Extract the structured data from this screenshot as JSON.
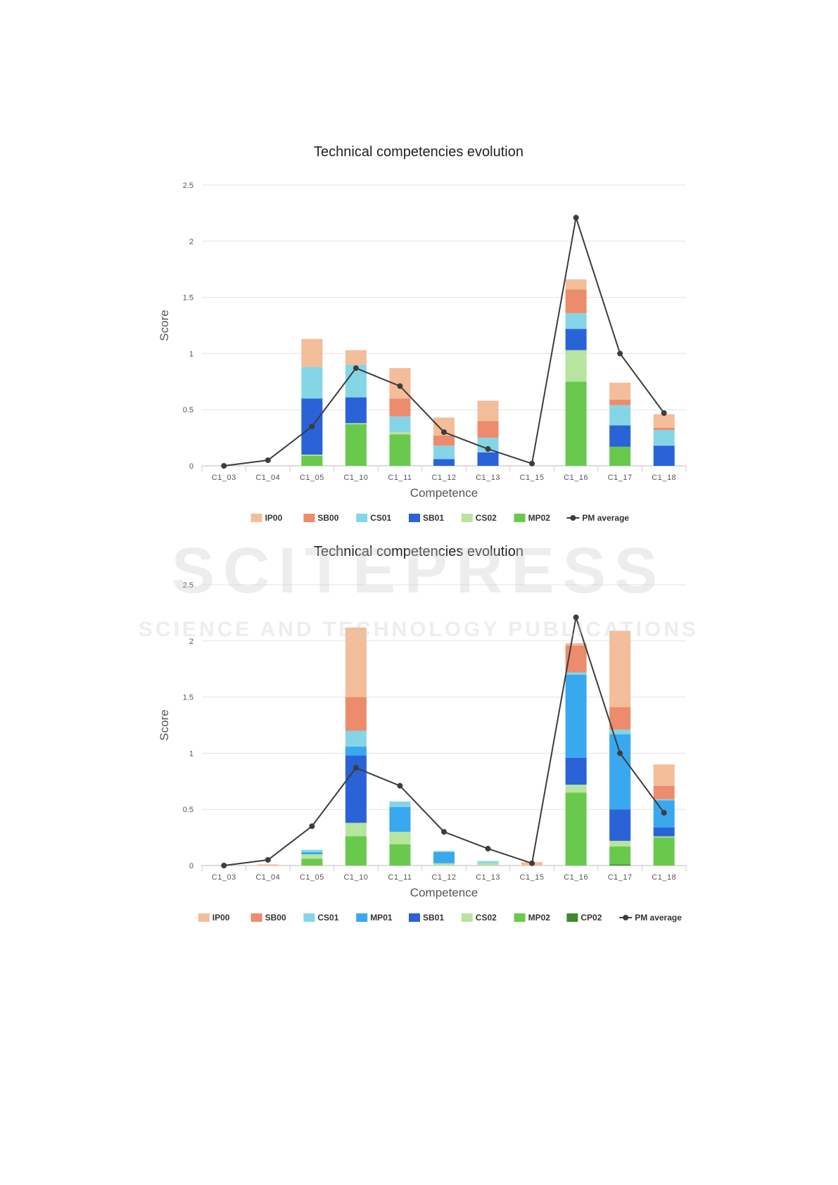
{
  "watermark": {
    "line1": "SCITEPRESS",
    "line2": "SCIENCE AND TECHNOLOGY PUBLICATIONS"
  },
  "series_colors": {
    "IP00": "#f4bd9a",
    "SB00": "#ec8c6c",
    "CS01": "#84d6e6",
    "MP01": "#39a8ef",
    "SB01": "#2a62d8",
    "CS02": "#b7e49e",
    "MP02": "#68c94c",
    "CP02": "#3d8b2c",
    "PM average": "#3d3d3d"
  },
  "chart_data": [
    {
      "type": "bar",
      "stacked": true,
      "title": "Technical competencies evolution",
      "xlabel": "Competence",
      "ylabel": "Score",
      "ylim": [
        0,
        2.5
      ],
      "yticks": [
        "0",
        "0.5",
        "1",
        "1.5",
        "2",
        "2.5"
      ],
      "grid": true,
      "legend_position": "bottom",
      "categories": [
        "C1_03",
        "C1_04",
        "C1_05",
        "C1_10",
        "C1_11",
        "C1_12",
        "C1_13",
        "C1_15",
        "C1_16",
        "C1_17",
        "C1_18"
      ],
      "series": [
        {
          "name": "MP02",
          "values": [
            0,
            0,
            0.09,
            0.37,
            0.28,
            0,
            0,
            0,
            0.75,
            0.17,
            0
          ]
        },
        {
          "name": "CS02",
          "values": [
            0,
            0,
            0.01,
            0.01,
            0.02,
            0,
            0,
            0,
            0.28,
            0,
            0
          ]
        },
        {
          "name": "SB01",
          "values": [
            0,
            0,
            0.5,
            0.23,
            0,
            0.06,
            0.12,
            0,
            0.19,
            0.19,
            0.18
          ]
        },
        {
          "name": "CS01",
          "values": [
            0,
            0,
            0.28,
            0.29,
            0.14,
            0.12,
            0.13,
            0,
            0.14,
            0.18,
            0.14
          ]
        },
        {
          "name": "SB00",
          "values": [
            0,
            0,
            0,
            0,
            0.16,
            0.09,
            0.15,
            0,
            0.21,
            0.05,
            0.02
          ]
        },
        {
          "name": "IP00",
          "values": [
            0,
            0,
            0.25,
            0.13,
            0.27,
            0.16,
            0.18,
            0,
            0.09,
            0.15,
            0.12
          ]
        }
      ],
      "line": {
        "name": "PM average",
        "values": [
          0,
          0.05,
          0.35,
          0.87,
          0.71,
          0.3,
          0.15,
          0.02,
          2.21,
          1.0,
          0.47
        ]
      },
      "legend": [
        "IP00",
        "SB00",
        "CS01",
        "SB01",
        "CS02",
        "MP02",
        "PM average"
      ]
    },
    {
      "type": "bar",
      "stacked": true,
      "title": "Technical competencies evolution",
      "xlabel": "Competence",
      "ylabel": "Score",
      "ylim": [
        0,
        2.5
      ],
      "yticks": [
        "0",
        "0.5",
        "1",
        "1.5",
        "2",
        "2.5"
      ],
      "grid": true,
      "legend_position": "bottom",
      "categories": [
        "C1_03",
        "C1_04",
        "C1_05",
        "C1_10",
        "C1_11",
        "C1_12",
        "C1_13",
        "C1_15",
        "C1_16",
        "C1_17",
        "C1_18"
      ],
      "series": [
        {
          "name": "CP02",
          "values": [
            0,
            0,
            0,
            0,
            0,
            0,
            0,
            0,
            0,
            0.01,
            0
          ]
        },
        {
          "name": "MP02",
          "values": [
            0,
            0,
            0.06,
            0.26,
            0.19,
            0,
            0,
            0,
            0.65,
            0.16,
            0.25
          ]
        },
        {
          "name": "CS02",
          "values": [
            0,
            0,
            0.04,
            0.12,
            0.11,
            0.02,
            0.02,
            0,
            0.07,
            0.05,
            0.01
          ]
        },
        {
          "name": "SB01",
          "values": [
            0,
            0,
            0,
            0.6,
            0,
            0,
            0,
            0,
            0.24,
            0.28,
            0.08
          ]
        },
        {
          "name": "MP01",
          "values": [
            0,
            0,
            0.02,
            0.08,
            0.22,
            0.1,
            0,
            0,
            0.74,
            0.67,
            0.24
          ]
        },
        {
          "name": "CS01",
          "values": [
            0,
            0,
            0.02,
            0.14,
            0.05,
            0.01,
            0.02,
            0,
            0.02,
            0.04,
            0.01
          ]
        },
        {
          "name": "SB00",
          "values": [
            0,
            0,
            0,
            0.3,
            0,
            0,
            0,
            0,
            0.24,
            0.2,
            0.12
          ]
        },
        {
          "name": "IP00",
          "values": [
            0,
            0.01,
            0,
            0.62,
            0,
            0,
            0,
            0.03,
            0.02,
            0.68,
            0.19
          ]
        }
      ],
      "line": {
        "name": "PM average",
        "values": [
          0,
          0.05,
          0.35,
          0.87,
          0.71,
          0.3,
          0.15,
          0.02,
          2.21,
          1.0,
          0.47
        ]
      },
      "legend": [
        "IP00",
        "SB00",
        "CS01",
        "MP01",
        "SB01",
        "CS02",
        "MP02",
        "CP02",
        "PM average"
      ]
    }
  ]
}
